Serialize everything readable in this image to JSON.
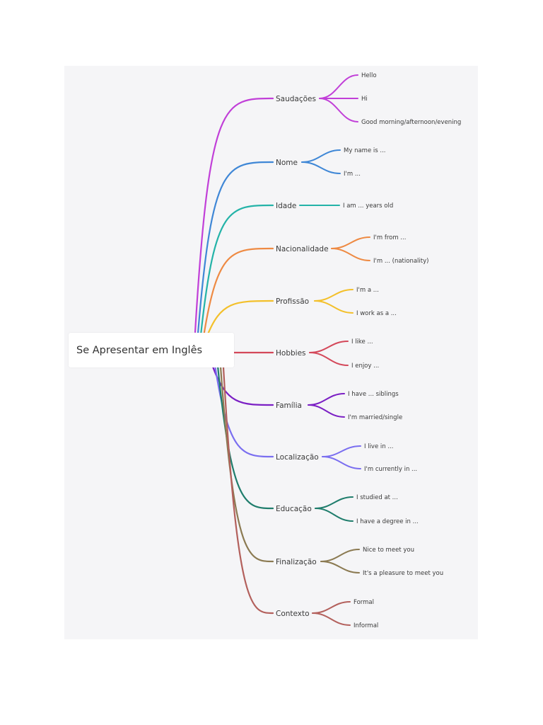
{
  "root": {
    "label": "Se Apresentar em Inglês"
  },
  "branches": [
    {
      "label": "Saudações",
      "color": "#c13fd8",
      "leaves": [
        "Hello",
        "Hi",
        "Good morning/afternoon/evening"
      ]
    },
    {
      "label": "Nome",
      "color": "#3f87d6",
      "leaves": [
        "My name is ...",
        "I'm ..."
      ]
    },
    {
      "label": "Idade",
      "color": "#24b3a8",
      "leaves": [
        "I am ... years old"
      ]
    },
    {
      "label": "Nacionalidade",
      "color": "#ee8a43",
      "leaves": [
        "I'm from ...",
        "I'm ... (nationality)"
      ]
    },
    {
      "label": "Profissão",
      "color": "#f3c02b",
      "leaves": [
        "I'm a ...",
        "I work as a ..."
      ]
    },
    {
      "label": "Hobbies",
      "color": "#d4485a",
      "leaves": [
        "I like ...",
        "I enjoy ..."
      ]
    },
    {
      "label": "Família",
      "color": "#7b1fc4",
      "leaves": [
        "I have ... siblings",
        "I'm married/single"
      ]
    },
    {
      "label": "Localização",
      "color": "#7a6ef0",
      "leaves": [
        "I live in ...",
        "I'm currently in ..."
      ]
    },
    {
      "label": "Educação",
      "color": "#1f7d6c",
      "leaves": [
        "I studied at ...",
        "I have a degree in ..."
      ]
    },
    {
      "label": "Finalização",
      "color": "#8b7a52",
      "leaves": [
        "Nice to meet you",
        "It's a pleasure to meet you"
      ]
    },
    {
      "label": "Contexto",
      "color": "#b3605c",
      "leaves": [
        "Formal",
        "Informal"
      ]
    }
  ]
}
